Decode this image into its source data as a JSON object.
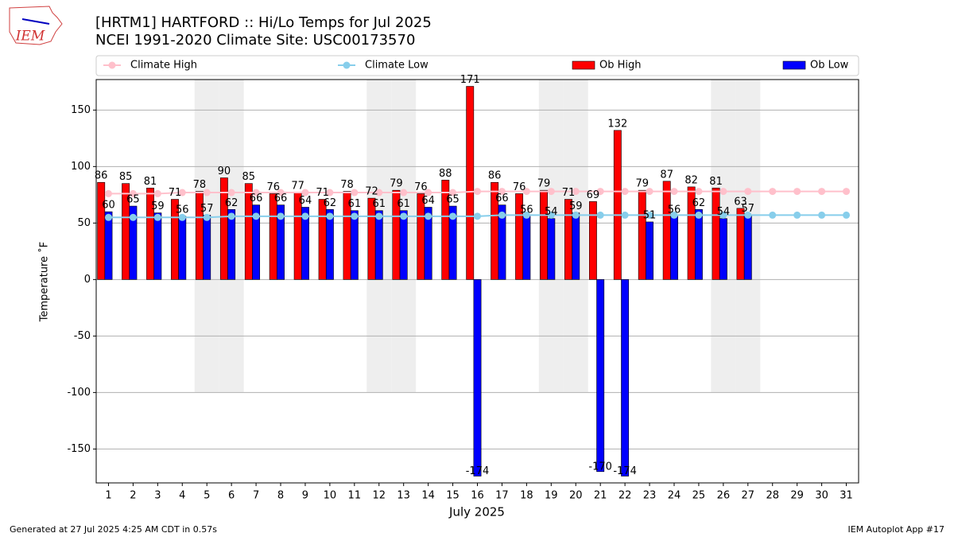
{
  "chart_data": {
    "type": "bar",
    "title": "[HRTM1] HARTFORD :: Hi/Lo Temps for Jul 2025",
    "subtitle": "NCEI 1991-2020 Climate Site: USC00173570",
    "logo_text": "IEM",
    "xlabel": "July 2025",
    "ylabel": "Temperature ˚F",
    "footer_left": "Generated at 27 Jul 2025 4:25 AM CDT in 0.57s",
    "footer_right": "IEM Autoplot App #17",
    "categories": [
      "1",
      "2",
      "3",
      "4",
      "5",
      "6",
      "7",
      "8",
      "9",
      "10",
      "11",
      "12",
      "13",
      "14",
      "15",
      "16",
      "17",
      "18",
      "19",
      "20",
      "21",
      "22",
      "23",
      "24",
      "25",
      "26",
      "27",
      "28",
      "29",
      "30",
      "31"
    ],
    "ylim": [
      -180,
      177
    ],
    "yticks": [
      -150,
      -100,
      -50,
      0,
      50,
      100,
      150
    ],
    "grid": true,
    "legend": "top",
    "shade": {
      "categories": [
        "5",
        "6",
        "12",
        "13",
        "19",
        "20",
        "26",
        "27"
      ],
      "ylim": [
        -100,
        177
      ],
      "color": "#eeeeee"
    },
    "series": [
      {
        "name": "Climate High",
        "kind": "line",
        "color": "#ffc0cb",
        "values": [
          76,
          76,
          76,
          77,
          77,
          77,
          77,
          77,
          77,
          77,
          77,
          77,
          77,
          77,
          77,
          78,
          78,
          78,
          78,
          78,
          78,
          78,
          78,
          78,
          78,
          78,
          78,
          78,
          78,
          78,
          78
        ]
      },
      {
        "name": "Climate Low",
        "kind": "line",
        "color": "#87ceeb",
        "values": [
          55,
          55,
          55,
          55,
          55,
          56,
          56,
          56,
          56,
          56,
          56,
          56,
          56,
          56,
          56,
          56,
          57,
          57,
          57,
          57,
          57,
          57,
          57,
          57,
          57,
          57,
          57,
          57,
          57,
          57,
          57
        ]
      },
      {
        "name": "Ob High",
        "kind": "bar",
        "color": "#ff0000",
        "values": [
          86,
          85,
          81,
          71,
          78,
          90,
          85,
          76,
          77,
          71,
          78,
          72,
          79,
          76,
          88,
          171,
          86,
          76,
          79,
          71,
          69,
          132,
          79,
          87,
          82,
          81,
          63,
          null,
          null,
          null,
          null
        ]
      },
      {
        "name": "Ob Low",
        "kind": "bar",
        "color": "#0000ff",
        "values": [
          60,
          65,
          59,
          56,
          57,
          62,
          66,
          66,
          64,
          62,
          61,
          61,
          61,
          64,
          65,
          -174,
          66,
          56,
          54,
          59,
          -170,
          -174,
          51,
          56,
          62,
          54,
          57,
          null,
          null,
          null,
          null
        ]
      }
    ]
  }
}
